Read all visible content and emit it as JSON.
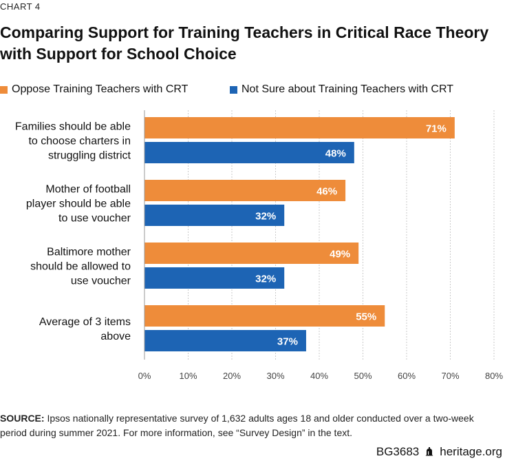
{
  "kicker": "CHART 4",
  "title": "Comparing Support for Training Teachers in Critical Race Theory with Support for School Choice",
  "legend": [
    {
      "label": "Oppose Training Teachers with CRT",
      "color": "#EE8C3A"
    },
    {
      "label": "Not Sure about Training Teachers with CRT",
      "color": "#1D64B4"
    }
  ],
  "chart_data": {
    "type": "bar",
    "orientation": "horizontal",
    "categories": [
      [
        "Families should be able",
        "to choose charters in",
        "struggling district"
      ],
      [
        "Mother of football",
        "player should be able",
        "to use voucher"
      ],
      [
        "Baltimore mother",
        "should be allowed to",
        "use voucher"
      ],
      [
        "Average of 3 items",
        "above"
      ]
    ],
    "series": [
      {
        "name": "Oppose Training Teachers with CRT",
        "values": [
          71,
          46,
          49,
          55
        ],
        "color": "#EE8C3A"
      },
      {
        "name": "Not Sure about Training Teachers with CRT",
        "values": [
          48,
          32,
          32,
          37
        ],
        "color": "#1D64B4"
      }
    ],
    "xlim": [
      0,
      80
    ],
    "xticks": [
      0,
      10,
      20,
      30,
      40,
      50,
      60,
      70,
      80
    ],
    "tick_suffix": "%",
    "value_suffix": "%",
    "grid": "vertical dashed"
  },
  "source": {
    "label": "SOURCE:",
    "text": " Ipsos nationally representative survey of 1,632 adults ages 18 and older conducted over a two-week period during summer 2021. For more information, see “Survey Design” in the text."
  },
  "footer": {
    "code": "BG3683",
    "site": "heritage.org",
    "icon": "liberty-bell-icon"
  }
}
